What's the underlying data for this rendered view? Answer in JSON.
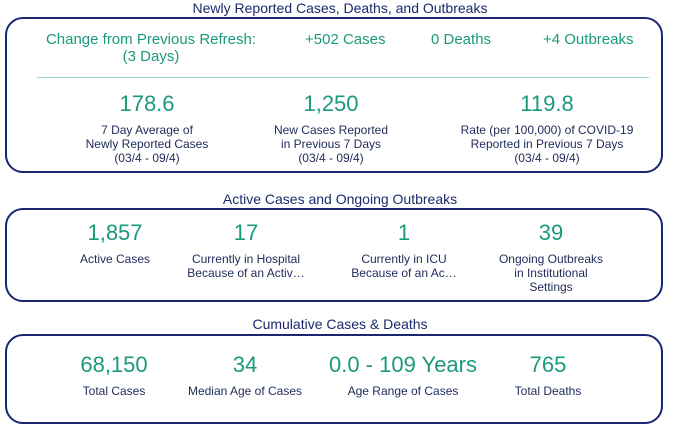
{
  "section1": {
    "title": "Newly Reported Cases, Deaths, and Outbreaks",
    "change_label_line1": "Change from Previous Refresh:",
    "change_label_line2": "(3 Days)",
    "change_cases": "+502 Cases",
    "change_deaths": "0 Deaths",
    "change_outbreaks": "+4 Outbreaks",
    "stats": [
      {
        "value": "178.6",
        "label": [
          "7 Day Average of",
          "Newly Reported Cases",
          "(03/4 - 09/4)"
        ]
      },
      {
        "value": "1,250",
        "label": [
          "New Cases Reported",
          "in Previous 7 Days",
          "(03/4 - 09/4)"
        ]
      },
      {
        "value": "119.8",
        "label": [
          "Rate (per 100,000) of COVID-19",
          "Reported in Previous 7 Days",
          "(03/4 - 09/4)"
        ]
      }
    ]
  },
  "section2": {
    "title": "Active Cases and Ongoing Outbreaks",
    "stats": [
      {
        "value": "1,857",
        "label": [
          "Active Cases"
        ]
      },
      {
        "value": "17",
        "label": [
          "Currently in Hospital",
          "Because of an Activ…"
        ]
      },
      {
        "value": "1",
        "label": [
          "Currently in ICU",
          "Because of an Ac…"
        ]
      },
      {
        "value": "39",
        "label": [
          "Ongoing Outbreaks",
          "in Institutional",
          "Settings"
        ]
      }
    ]
  },
  "section3": {
    "title": "Cumulative Cases & Deaths",
    "stats": [
      {
        "value": "68,150",
        "label": [
          "Total Cases"
        ]
      },
      {
        "value": "34",
        "label": [
          "Median Age of Cases"
        ]
      },
      {
        "value": "0.0 - 109 Years",
        "label": [
          "Age Range of Cases"
        ]
      },
      {
        "value": "765",
        "label": [
          "Total Deaths"
        ]
      }
    ]
  },
  "colors": {
    "accent": "#1a9a7c",
    "border": "#1a2672",
    "text": "#1f2a5a"
  }
}
